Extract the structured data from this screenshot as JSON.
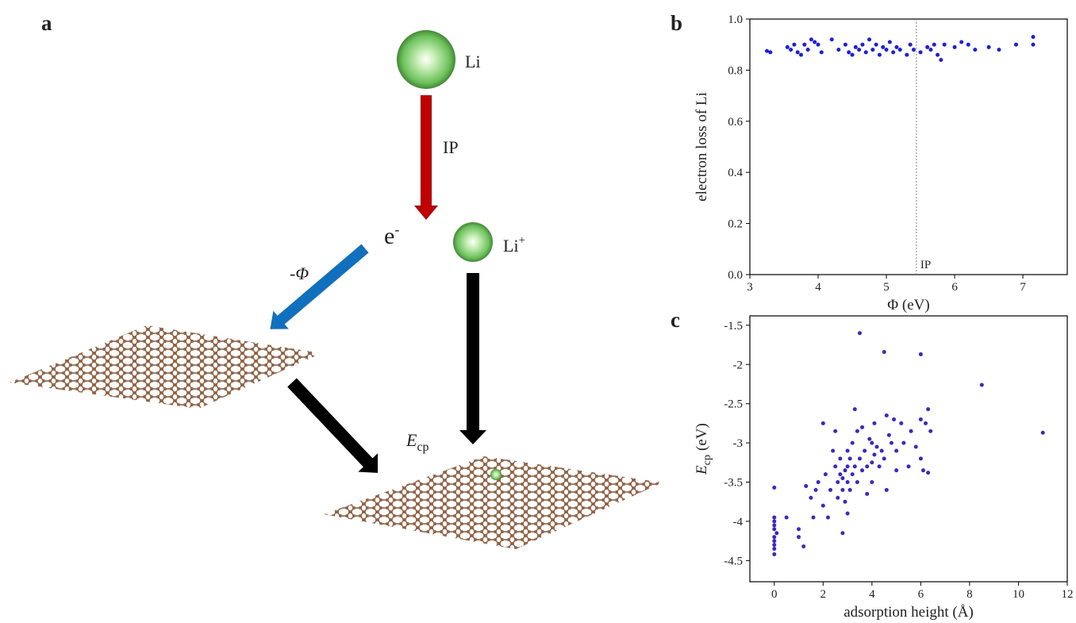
{
  "diagram": {
    "panel_label": "a",
    "li": "Li",
    "ip": "IP",
    "electron": {
      "base": "e",
      "sup": "-"
    },
    "li_ion": {
      "base": "Li",
      "sup": "+"
    },
    "work_function": {
      "sign": "-",
      "symbol": "Φ"
    },
    "energy": {
      "main": "E",
      "sub": "cp"
    }
  },
  "chart_data": [
    {
      "type": "scatter",
      "panel_label": "b",
      "xlabel": "Φ (eV)",
      "ylabel": "electron loss of Li",
      "color": "#1a1aff",
      "xlim": [
        3,
        7.65
      ],
      "ylim": [
        0,
        1
      ],
      "xticks": [
        3,
        4,
        5,
        6,
        7
      ],
      "yticks": [
        {
          "value": 0,
          "label": "0.0"
        },
        0.2,
        0.4,
        0.6,
        0.8,
        {
          "value": 1,
          "label": "1.0"
        }
      ],
      "vline": {
        "x": 5.44,
        "label": "IP"
      },
      "x": [
        3.25,
        3.3,
        3.55,
        3.6,
        3.65,
        3.7,
        3.75,
        3.8,
        3.85,
        3.9,
        3.95,
        4.0,
        4.05,
        4.2,
        4.3,
        4.4,
        4.45,
        4.5,
        4.55,
        4.6,
        4.65,
        4.7,
        4.75,
        4.8,
        4.85,
        4.9,
        4.95,
        5.0,
        5.05,
        5.1,
        5.15,
        5.2,
        5.3,
        5.35,
        5.4,
        5.5,
        5.6,
        5.65,
        5.7,
        5.75,
        5.8,
        5.85,
        6.0,
        6.1,
        6.2,
        6.3,
        6.5,
        6.65,
        6.9,
        7.15,
        7.15
      ],
      "values": [
        0.875,
        0.87,
        0.89,
        0.88,
        0.9,
        0.87,
        0.86,
        0.9,
        0.88,
        0.92,
        0.91,
        0.9,
        0.87,
        0.92,
        0.88,
        0.9,
        0.87,
        0.86,
        0.89,
        0.88,
        0.9,
        0.87,
        0.92,
        0.88,
        0.9,
        0.86,
        0.89,
        0.88,
        0.91,
        0.87,
        0.89,
        0.88,
        0.86,
        0.9,
        0.88,
        0.87,
        0.89,
        0.88,
        0.9,
        0.86,
        0.84,
        0.9,
        0.89,
        0.91,
        0.9,
        0.88,
        0.89,
        0.88,
        0.9,
        0.93,
        0.9
      ]
    },
    {
      "type": "scatter",
      "panel_label": "c",
      "xlabel": "adsorption height (Å)",
      "ylabel": {
        "main": "E",
        "sub": "cp",
        "unit": "(eV)"
      },
      "color": "#4020e0",
      "xlim": [
        -1,
        12
      ],
      "ylim": [
        -4.77,
        -1.38
      ],
      "xticks": [
        0,
        2,
        4,
        6,
        8,
        10,
        12
      ],
      "yticks": [
        -4.5,
        -4.0,
        -3.5,
        -3.0,
        -2.5,
        -2.0,
        -1.5
      ],
      "x": [
        0,
        0,
        0,
        0,
        0,
        0,
        0,
        0,
        0,
        0,
        0.1,
        0.5,
        1,
        1,
        1.2,
        1.3,
        1.5,
        1.6,
        1.7,
        1.8,
        2,
        2,
        2.1,
        2.2,
        2.3,
        2.4,
        2.5,
        2.5,
        2.6,
        2.6,
        2.7,
        2.7,
        2.8,
        2.8,
        2.8,
        2.9,
        2.9,
        3,
        3,
        3,
        3,
        3.1,
        3.1,
        3.2,
        3.2,
        3.3,
        3.3,
        3.4,
        3.4,
        3.5,
        3.5,
        3.6,
        3.6,
        3.7,
        3.8,
        3.8,
        3.9,
        4,
        4,
        4,
        4.1,
        4.1,
        4.2,
        4.3,
        4.4,
        4.5,
        4.5,
        4.6,
        4.6,
        4.7,
        4.8,
        4.9,
        5,
        5,
        5.2,
        5.3,
        5.5,
        5.6,
        5.8,
        6,
        6,
        6,
        6.1,
        6.2,
        6.3,
        6.3,
        6.4,
        8.5,
        11
      ],
      "values": [
        -3.57,
        -3.95,
        -4.0,
        -4.05,
        -4.1,
        -4.2,
        -4.25,
        -4.3,
        -4.35,
        -4.42,
        -4.15,
        -3.95,
        -4.1,
        -4.2,
        -4.32,
        -3.55,
        -3.7,
        -3.95,
        -3.6,
        -3.5,
        -2.75,
        -3.8,
        -3.4,
        -3.95,
        -3.6,
        -3.1,
        -2.85,
        -3.3,
        -3.5,
        -3.7,
        -3.4,
        -3.2,
        -3.45,
        -3.6,
        -4.15,
        -3.35,
        -3.75,
        -3.1,
        -3.3,
        -3.5,
        -3.9,
        -3.2,
        -3.6,
        -3.4,
        -3.0,
        -2.57,
        -3.3,
        -2.85,
        -3.5,
        -1.6,
        -3.2,
        -3.35,
        -2.8,
        -3.1,
        -3.65,
        -3.3,
        -2.95,
        -3.0,
        -3.25,
        -3.5,
        -2.75,
        -3.15,
        -3.05,
        -3.3,
        -3.1,
        -1.84,
        -3.2,
        -2.65,
        -3.6,
        -2.9,
        -3.0,
        -2.7,
        -3.35,
        -3.1,
        -2.75,
        -3.0,
        -3.3,
        -2.85,
        -3.05,
        -2.7,
        -1.87,
        -3.2,
        -3.35,
        -2.75,
        -2.57,
        -3.38,
        -2.85,
        -2.26,
        -2.87
      ]
    }
  ]
}
